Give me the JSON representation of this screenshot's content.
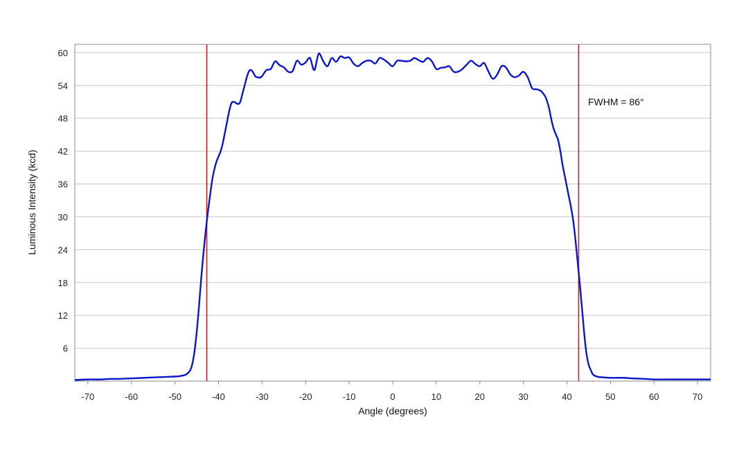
{
  "chart_data": {
    "type": "line",
    "xlabel": "Angle (degrees)",
    "ylabel": "Luminous Intensity (kcd)",
    "xlim": [
      -73,
      73
    ],
    "ylim": [
      0,
      61.5
    ],
    "xticks": [
      -70,
      -60,
      -50,
      -40,
      -30,
      -20,
      -10,
      0,
      10,
      20,
      30,
      40,
      50,
      60,
      70
    ],
    "yticks": [
      6,
      12,
      18,
      24,
      30,
      36,
      42,
      48,
      54,
      60
    ],
    "grid": "horizontal",
    "annotation": "FWHM = 86°",
    "series": [
      {
        "color": "#0a14c8",
        "x": [
          -73,
          -70,
          -67,
          -65,
          -63,
          -60,
          -57,
          -54,
          -51,
          -49,
          -47.5,
          -46.5,
          -46,
          -45.5,
          -45,
          -44.5,
          -44,
          -43.5,
          -43,
          -42.5,
          -42,
          -41.5,
          -41,
          -40.5,
          -40,
          -39.5,
          -39,
          -38.5,
          -38,
          -37.5,
          -37,
          -36.5,
          -36,
          -35.5,
          -35,
          -34.5,
          -34,
          -33.5,
          -33,
          -32.5,
          -32,
          -31.5,
          -31,
          -30.5,
          -30,
          -29,
          -28,
          -27,
          -26,
          -25,
          -24,
          -23,
          -22,
          -21,
          -20,
          -19,
          -18,
          -17,
          -16,
          -15,
          -14,
          -13,
          -12,
          -11,
          -10,
          -9,
          -8,
          -7,
          -6,
          -5,
          -4,
          -3,
          -2,
          -1,
          0,
          1,
          2,
          3,
          4,
          5,
          6,
          7,
          8,
          9,
          10,
          11,
          12,
          13,
          14,
          15,
          16,
          17,
          18,
          19,
          20,
          21,
          22,
          23,
          24,
          25,
          26,
          27,
          28,
          29,
          30,
          31,
          32,
          33,
          34,
          35,
          35.5,
          36,
          36.5,
          37,
          37.5,
          38,
          38.5,
          39,
          39.5,
          40,
          40.5,
          41,
          41.5,
          42,
          42.5,
          43,
          43.5,
          44,
          44.5,
          45,
          45.5,
          46,
          47,
          48,
          50,
          53,
          55,
          58,
          60,
          63,
          66,
          70,
          73
        ],
        "y": [
          0.2,
          0.3,
          0.3,
          0.4,
          0.4,
          0.5,
          0.6,
          0.7,
          0.8,
          0.9,
          1.2,
          2.0,
          3.2,
          5.5,
          9.0,
          13.5,
          18.5,
          23.0,
          27.0,
          30.5,
          33.5,
          36.5,
          38.5,
          40.0,
          41.0,
          42.0,
          43.5,
          45.5,
          47.5,
          49.5,
          50.8,
          51.0,
          50.8,
          50.6,
          51.0,
          52.5,
          54.0,
          55.5,
          56.6,
          56.8,
          56.3,
          55.6,
          55.5,
          55.4,
          55.7,
          56.8,
          57.0,
          58.4,
          57.7,
          57.3,
          56.5,
          56.6,
          58.5,
          57.8,
          58.2,
          59.0,
          56.8,
          59.8,
          58.5,
          57.5,
          59.0,
          58.3,
          59.3,
          59.0,
          59.1,
          58.0,
          57.5,
          58.1,
          58.5,
          58.5,
          58.0,
          59.0,
          58.7,
          58.1,
          57.5,
          58.5,
          58.5,
          58.4,
          58.5,
          59.0,
          58.6,
          58.3,
          59.0,
          58.4,
          57.0,
          57.2,
          57.3,
          57.5,
          56.5,
          56.5,
          57.0,
          57.8,
          58.5,
          57.9,
          57.5,
          58.1,
          56.5,
          55.2,
          56.0,
          57.5,
          57.3,
          56.0,
          55.5,
          55.8,
          56.5,
          55.5,
          53.5,
          53.3,
          53.0,
          52.0,
          51.0,
          49.5,
          47.5,
          46.0,
          45.0,
          44.0,
          42.0,
          39.5,
          37.5,
          35.5,
          33.5,
          31.5,
          29.0,
          25.5,
          21.5,
          17.5,
          13.0,
          8.5,
          5.0,
          3.0,
          2.0,
          1.2,
          0.8,
          0.7,
          0.6,
          0.6,
          0.5,
          0.4,
          0.3,
          0.3,
          0.3,
          0.3,
          0.3
        ]
      }
    ],
    "markers": [
      {
        "x": -42.7,
        "color": "#cc1e1e"
      },
      {
        "x": 42.7,
        "color": "#cc1e1e"
      }
    ]
  }
}
